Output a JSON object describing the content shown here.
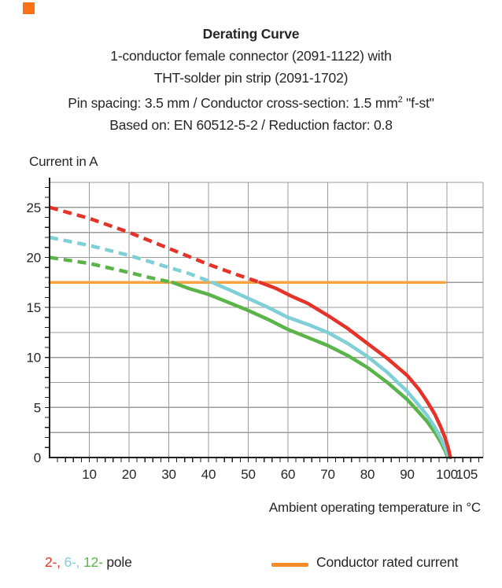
{
  "brand": {
    "corner_square_color": "#f97316"
  },
  "title": {
    "line1": "Derating Curve",
    "line2": "1-conductor female connector (2091-1122) with",
    "line3": "THT-solder pin strip (2091-1702)",
    "line4_pre": "Pin spacing: 3.5 mm / Conductor cross-section: 1.5 mm",
    "line4_sup": "2",
    "line4_post": " \"f-st\"",
    "line5": "Based on: EN 60512-5-2 / Reduction factor: 0.8"
  },
  "chart_data": {
    "type": "line",
    "title": "Derating Curve",
    "xlabel": "Ambient operating temperature in °C",
    "ylabel": "Current in A",
    "xlim": [
      0,
      109
    ],
    "ylim": [
      0,
      27.5
    ],
    "grid": {
      "x_step": 10,
      "x_max_gridline": 100,
      "y_step": 2.5,
      "color": "#9b9b9b"
    },
    "x_tick_labels": [
      10,
      20,
      30,
      40,
      50,
      60,
      70,
      80,
      90,
      100,
      105
    ],
    "y_tick_labels": [
      0,
      5,
      10,
      15,
      20,
      25
    ],
    "x_minor_tick_step": 2,
    "y_minor_tick_step": 1,
    "axis_color": "#1f1f1f",
    "rated_current_A": 17.5,
    "series": [
      {
        "name": "2-pole",
        "color": "#e5332a",
        "width": 4.5,
        "segments": [
          {
            "style": "dashed",
            "points": [
              [
                0,
                25
              ],
              [
                10,
                23.9
              ],
              [
                20,
                22.5
              ],
              [
                30,
                20.9
              ],
              [
                40,
                19.3
              ],
              [
                47,
                18.3
              ],
              [
                53,
                17.5
              ]
            ]
          },
          {
            "style": "solid",
            "points": [
              [
                53,
                17.5
              ],
              [
                57,
                16.9
              ],
              [
                61,
                16.1
              ],
              [
                65,
                15.4
              ],
              [
                70,
                14.2
              ],
              [
                75,
                12.9
              ],
              [
                80,
                11.4
              ],
              [
                85,
                9.9
              ],
              [
                90,
                8.2
              ],
              [
                93,
                6.8
              ],
              [
                95,
                5.6
              ],
              [
                97,
                4.3
              ],
              [
                98.5,
                3.0
              ],
              [
                99.5,
                2.0
              ],
              [
                100.3,
                1.0
              ],
              [
                100.9,
                0
              ]
            ]
          }
        ]
      },
      {
        "name": "6-pole",
        "color": "#7fcfd6",
        "width": 4.5,
        "segments": [
          {
            "style": "dashed",
            "points": [
              [
                0,
                22
              ],
              [
                10,
                21.2
              ],
              [
                20,
                20.2
              ],
              [
                30,
                19.0
              ],
              [
                35,
                18.4
              ],
              [
                41,
                17.5
              ]
            ]
          },
          {
            "style": "solid",
            "points": [
              [
                41,
                17.5
              ],
              [
                45,
                16.8
              ],
              [
                50,
                15.9
              ],
              [
                55,
                15.0
              ],
              [
                60,
                14.0
              ],
              [
                65,
                13.3
              ],
              [
                70,
                12.5
              ],
              [
                75,
                11.4
              ],
              [
                80,
                10.1
              ],
              [
                85,
                8.5
              ],
              [
                90,
                6.6
              ],
              [
                93,
                5.2
              ],
              [
                95,
                4.2
              ],
              [
                97,
                3.0
              ],
              [
                98.5,
                1.9
              ],
              [
                99.5,
                1.0
              ],
              [
                100.4,
                0
              ]
            ]
          }
        ]
      },
      {
        "name": "12-pole",
        "color": "#5bb449",
        "width": 4.5,
        "segments": [
          {
            "style": "dashed",
            "points": [
              [
                0,
                20
              ],
              [
                10,
                19.4
              ],
              [
                20,
                18.5
              ],
              [
                25,
                18.0
              ],
              [
                31,
                17.5
              ]
            ]
          },
          {
            "style": "solid",
            "points": [
              [
                31,
                17.5
              ],
              [
                35,
                16.9
              ],
              [
                40,
                16.3
              ],
              [
                45,
                15.5
              ],
              [
                50,
                14.7
              ],
              [
                55,
                13.8
              ],
              [
                60,
                12.8
              ],
              [
                65,
                12.0
              ],
              [
                70,
                11.2
              ],
              [
                75,
                10.2
              ],
              [
                80,
                9.0
              ],
              [
                85,
                7.5
              ],
              [
                90,
                5.8
              ],
              [
                93,
                4.5
              ],
              [
                95,
                3.6
              ],
              [
                97,
                2.5
              ],
              [
                98.5,
                1.5
              ],
              [
                99.5,
                0.7
              ],
              [
                100.2,
                0
              ]
            ]
          }
        ]
      },
      {
        "name": "Conductor rated current",
        "color": "#f7a342",
        "width": 3.5,
        "segments": [
          {
            "style": "solid",
            "points": [
              [
                0,
                17.5
              ],
              [
                99.5,
                17.5
              ]
            ]
          }
        ]
      }
    ]
  },
  "legend": {
    "pole_parts": [
      {
        "text": "2-, ",
        "color": "#e5332a"
      },
      {
        "text": "6-, ",
        "color": "#7fcfd6"
      },
      {
        "text": "12- ",
        "color": "#5bb449"
      },
      {
        "text": "pole",
        "color": "#262626"
      }
    ],
    "rated": {
      "label": "Conductor rated current",
      "swatch_color": "#f28b28"
    }
  }
}
